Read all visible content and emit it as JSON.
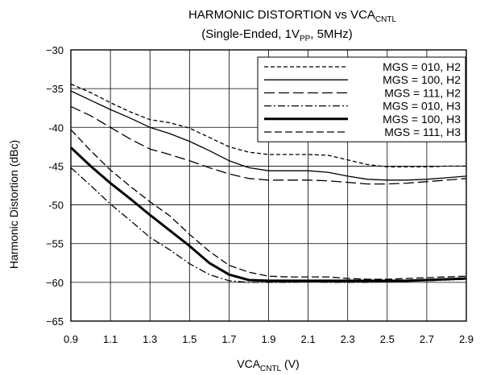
{
  "chart_data": {
    "type": "line",
    "title": {
      "line1_main": "HARMONIC DISTORTION vs VCA",
      "line1_sub": "CNTL",
      "line2_pre": "(Single-Ended, 1V",
      "line2_sub": "PP",
      "line2_post": ", 5MHz)"
    },
    "xlabel": {
      "main": "VCA",
      "sub": "CNTL",
      "post": " (V)"
    },
    "ylabel": "Harmonic Distortion (dBc)",
    "xlim": [
      0.9,
      2.9
    ],
    "ylim": [
      -65,
      -30
    ],
    "xticks": [
      "0.9",
      "1.1",
      "1.3",
      "1.5",
      "1.7",
      "1.9",
      "2.1",
      "2.3",
      "2.5",
      "2.7",
      "2.9"
    ],
    "yticks": [
      "−30",
      "−35",
      "-40",
      "-45",
      "-50",
      "−55",
      "−60",
      "−65"
    ],
    "grid": true,
    "legend_position": "top-right",
    "series": [
      {
        "name": "MGS = 010, H2",
        "style": "short-dash",
        "width": 1.3,
        "x": [
          0.9,
          1.0,
          1.1,
          1.2,
          1.3,
          1.4,
          1.5,
          1.6,
          1.7,
          1.8,
          1.9,
          2.0,
          2.1,
          2.2,
          2.3,
          2.4,
          2.5,
          2.6,
          2.7,
          2.8,
          2.9
        ],
        "y": [
          -34.4,
          -35.5,
          -36.8,
          -38.0,
          -39.0,
          -39.4,
          -40.1,
          -41.3,
          -42.5,
          -43.2,
          -43.5,
          -43.5,
          -43.5,
          -43.6,
          -44.2,
          -44.8,
          -45.1,
          -45.1,
          -45.1,
          -45.0,
          -45.0
        ]
      },
      {
        "name": "MGS = 100, H2",
        "style": "solid",
        "width": 1.3,
        "x": [
          0.9,
          1.0,
          1.1,
          1.2,
          1.3,
          1.4,
          1.5,
          1.6,
          1.7,
          1.8,
          1.9,
          2.0,
          2.1,
          2.2,
          2.3,
          2.4,
          2.5,
          2.6,
          2.7,
          2.8,
          2.9
        ],
        "y": [
          -35.3,
          -36.5,
          -37.7,
          -38.8,
          -40.0,
          -40.8,
          -41.8,
          -43.0,
          -44.3,
          -45.2,
          -45.6,
          -45.6,
          -45.6,
          -45.8,
          -46.3,
          -46.7,
          -46.8,
          -46.8,
          -46.7,
          -46.5,
          -46.3
        ]
      },
      {
        "name": "MGS = 111, H2",
        "style": "long-dash",
        "width": 1.3,
        "x": [
          0.9,
          1.0,
          1.1,
          1.2,
          1.3,
          1.4,
          1.5,
          1.6,
          1.7,
          1.8,
          1.9,
          2.0,
          2.1,
          2.2,
          2.3,
          2.4,
          2.5,
          2.6,
          2.7,
          2.8,
          2.9
        ],
        "y": [
          -37.3,
          -38.5,
          -40.0,
          -41.5,
          -42.8,
          -43.5,
          -44.3,
          -45.2,
          -46.0,
          -46.6,
          -46.8,
          -46.8,
          -46.8,
          -46.9,
          -47.1,
          -47.3,
          -47.3,
          -47.2,
          -47.0,
          -46.8,
          -46.6
        ]
      },
      {
        "name": "MGS = 010, H3",
        "style": "dash-dot",
        "width": 1.3,
        "x": [
          0.9,
          1.0,
          1.1,
          1.2,
          1.3,
          1.4,
          1.5,
          1.6,
          1.7,
          1.8,
          1.9,
          2.0,
          2.1,
          2.2,
          2.3,
          2.4,
          2.5,
          2.6,
          2.7,
          2.8,
          2.9
        ],
        "y": [
          -45.2,
          -47.5,
          -49.9,
          -52.0,
          -54.2,
          -55.8,
          -57.6,
          -59.0,
          -59.8,
          -60.0,
          -60.0,
          -60.0,
          -59.9,
          -60.0,
          -60.0,
          -60.0,
          -59.9,
          -59.8,
          -59.8,
          -59.7,
          -59.6
        ]
      },
      {
        "name": "MGS = 100, H3",
        "style": "solid",
        "width": 3.0,
        "x": [
          0.9,
          1.0,
          1.1,
          1.2,
          1.3,
          1.4,
          1.5,
          1.6,
          1.7,
          1.8,
          1.9,
          2.0,
          2.1,
          2.2,
          2.3,
          2.4,
          2.5,
          2.6,
          2.7,
          2.8,
          2.9
        ],
        "y": [
          -42.6,
          -45.0,
          -47.2,
          -49.2,
          -51.3,
          -53.3,
          -55.3,
          -57.5,
          -59.0,
          -59.7,
          -59.8,
          -59.8,
          -59.8,
          -59.8,
          -59.8,
          -59.8,
          -59.8,
          -59.8,
          -59.7,
          -59.6,
          -59.5
        ]
      },
      {
        "name": "MGS = 111, H3",
        "style": "medium-dash",
        "width": 1.3,
        "x": [
          0.9,
          1.0,
          1.1,
          1.2,
          1.3,
          1.4,
          1.5,
          1.6,
          1.7,
          1.8,
          1.9,
          2.0,
          2.1,
          2.2,
          2.3,
          2.4,
          2.5,
          2.6,
          2.7,
          2.8,
          2.9
        ],
        "y": [
          -40.3,
          -43.0,
          -45.5,
          -47.6,
          -49.6,
          -51.4,
          -53.8,
          -56.0,
          -57.8,
          -58.7,
          -59.2,
          -59.3,
          -59.3,
          -59.3,
          -59.5,
          -59.6,
          -59.6,
          -59.5,
          -59.4,
          -59.3,
          -59.2
        ]
      }
    ]
  },
  "colors": {
    "line": "#000000",
    "grid": "#000000",
    "background": "#ffffff"
  }
}
